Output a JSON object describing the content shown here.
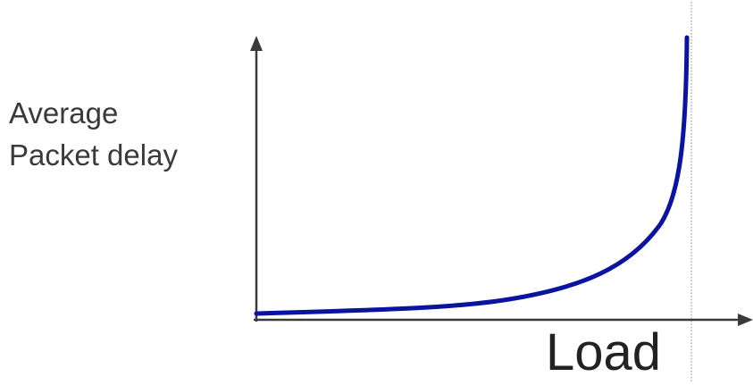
{
  "diagram": {
    "y_axis_label_lines": [
      "Average",
      "Packet delay"
    ],
    "x_axis_label": "Load",
    "colors": {
      "axis": "#3a3a3a",
      "curve": "#0a14a0",
      "capacity_line": "#8a8a8a"
    }
  }
}
